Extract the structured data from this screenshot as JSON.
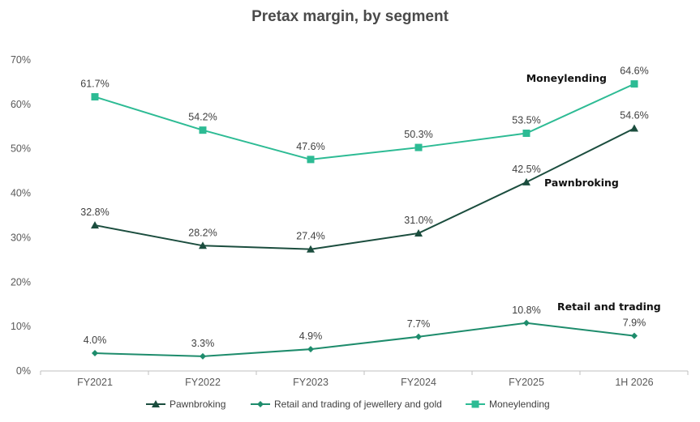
{
  "chart_data": {
    "type": "line",
    "title": "Pretax margin, by segment",
    "xlabel": "",
    "ylabel": "",
    "categories": [
      "FY2021",
      "FY2022",
      "FY2023",
      "FY2024",
      "FY2025",
      "1H 2026"
    ],
    "ylim": [
      0,
      70
    ],
    "yticks": [
      "0%",
      "10%",
      "20%",
      "30%",
      "40%",
      "50%",
      "60%",
      "70%"
    ],
    "grid": false,
    "legend_position": "bottom",
    "series": [
      {
        "name": "Pawnbroking",
        "values": [
          32.8,
          28.2,
          27.4,
          31.0,
          42.5,
          54.6
        ],
        "labels": [
          "32.8%",
          "28.2%",
          "27.4%",
          "31.0%",
          "42.5%",
          "54.6%"
        ],
        "color": "#1b4d3e",
        "marker": "triangle",
        "annotation": "Pawnbroking"
      },
      {
        "name": "Retail and trading of jewellery and gold",
        "values": [
          4.0,
          3.3,
          4.9,
          7.7,
          10.8,
          7.9
        ],
        "labels": [
          "4.0%",
          "3.3%",
          "4.9%",
          "7.7%",
          "10.8%",
          "7.9%"
        ],
        "color": "#1e8c6c",
        "marker": "diamond",
        "annotation": "Retail and trading"
      },
      {
        "name": "Moneylending",
        "values": [
          61.7,
          54.2,
          47.6,
          50.3,
          53.5,
          64.6
        ],
        "labels": [
          "61.7%",
          "54.2%",
          "47.6%",
          "50.3%",
          "53.5%",
          "64.6%"
        ],
        "color": "#2dbb94",
        "marker": "square",
        "annotation": "Moneylending"
      }
    ]
  }
}
